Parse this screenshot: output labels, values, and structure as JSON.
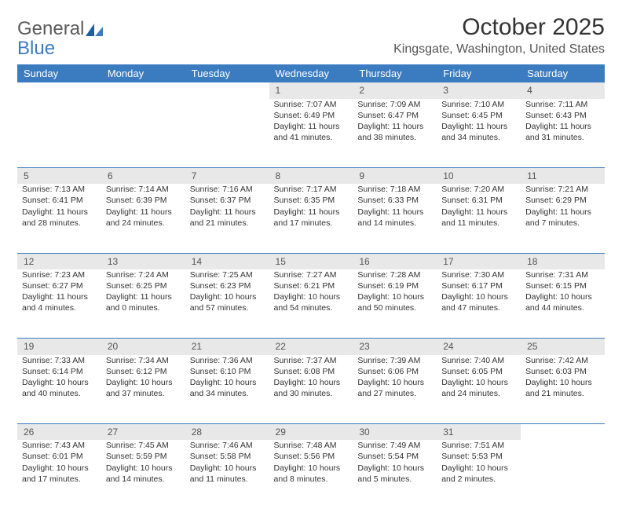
{
  "logo": {
    "line1": "General",
    "line2": "Blue"
  },
  "title": "October 2025",
  "location": "Kingsgate, Washington, United States",
  "colors": {
    "header_bg": "#3b7bbf",
    "header_text": "#ffffff",
    "daynum_bg": "#e8e8e8",
    "border": "#3b7bbf",
    "text": "#333333",
    "logo_gray": "#5a5a5a",
    "logo_blue": "#3b7bbf"
  },
  "fonts": {
    "title_pt": 30,
    "location_pt": 16,
    "weekday_pt": 13,
    "daynum_pt": 12,
    "cell_pt": 10.5
  },
  "weekdays": [
    "Sunday",
    "Monday",
    "Tuesday",
    "Wednesday",
    "Thursday",
    "Friday",
    "Saturday"
  ],
  "weeks": [
    [
      null,
      null,
      null,
      {
        "n": "1",
        "sr": "Sunrise: 7:07 AM",
        "ss": "Sunset: 6:49 PM",
        "d1": "Daylight: 11 hours",
        "d2": "and 41 minutes."
      },
      {
        "n": "2",
        "sr": "Sunrise: 7:09 AM",
        "ss": "Sunset: 6:47 PM",
        "d1": "Daylight: 11 hours",
        "d2": "and 38 minutes."
      },
      {
        "n": "3",
        "sr": "Sunrise: 7:10 AM",
        "ss": "Sunset: 6:45 PM",
        "d1": "Daylight: 11 hours",
        "d2": "and 34 minutes."
      },
      {
        "n": "4",
        "sr": "Sunrise: 7:11 AM",
        "ss": "Sunset: 6:43 PM",
        "d1": "Daylight: 11 hours",
        "d2": "and 31 minutes."
      }
    ],
    [
      {
        "n": "5",
        "sr": "Sunrise: 7:13 AM",
        "ss": "Sunset: 6:41 PM",
        "d1": "Daylight: 11 hours",
        "d2": "and 28 minutes."
      },
      {
        "n": "6",
        "sr": "Sunrise: 7:14 AM",
        "ss": "Sunset: 6:39 PM",
        "d1": "Daylight: 11 hours",
        "d2": "and 24 minutes."
      },
      {
        "n": "7",
        "sr": "Sunrise: 7:16 AM",
        "ss": "Sunset: 6:37 PM",
        "d1": "Daylight: 11 hours",
        "d2": "and 21 minutes."
      },
      {
        "n": "8",
        "sr": "Sunrise: 7:17 AM",
        "ss": "Sunset: 6:35 PM",
        "d1": "Daylight: 11 hours",
        "d2": "and 17 minutes."
      },
      {
        "n": "9",
        "sr": "Sunrise: 7:18 AM",
        "ss": "Sunset: 6:33 PM",
        "d1": "Daylight: 11 hours",
        "d2": "and 14 minutes."
      },
      {
        "n": "10",
        "sr": "Sunrise: 7:20 AM",
        "ss": "Sunset: 6:31 PM",
        "d1": "Daylight: 11 hours",
        "d2": "and 11 minutes."
      },
      {
        "n": "11",
        "sr": "Sunrise: 7:21 AM",
        "ss": "Sunset: 6:29 PM",
        "d1": "Daylight: 11 hours",
        "d2": "and 7 minutes."
      }
    ],
    [
      {
        "n": "12",
        "sr": "Sunrise: 7:23 AM",
        "ss": "Sunset: 6:27 PM",
        "d1": "Daylight: 11 hours",
        "d2": "and 4 minutes."
      },
      {
        "n": "13",
        "sr": "Sunrise: 7:24 AM",
        "ss": "Sunset: 6:25 PM",
        "d1": "Daylight: 11 hours",
        "d2": "and 0 minutes."
      },
      {
        "n": "14",
        "sr": "Sunrise: 7:25 AM",
        "ss": "Sunset: 6:23 PM",
        "d1": "Daylight: 10 hours",
        "d2": "and 57 minutes."
      },
      {
        "n": "15",
        "sr": "Sunrise: 7:27 AM",
        "ss": "Sunset: 6:21 PM",
        "d1": "Daylight: 10 hours",
        "d2": "and 54 minutes."
      },
      {
        "n": "16",
        "sr": "Sunrise: 7:28 AM",
        "ss": "Sunset: 6:19 PM",
        "d1": "Daylight: 10 hours",
        "d2": "and 50 minutes."
      },
      {
        "n": "17",
        "sr": "Sunrise: 7:30 AM",
        "ss": "Sunset: 6:17 PM",
        "d1": "Daylight: 10 hours",
        "d2": "and 47 minutes."
      },
      {
        "n": "18",
        "sr": "Sunrise: 7:31 AM",
        "ss": "Sunset: 6:15 PM",
        "d1": "Daylight: 10 hours",
        "d2": "and 44 minutes."
      }
    ],
    [
      {
        "n": "19",
        "sr": "Sunrise: 7:33 AM",
        "ss": "Sunset: 6:14 PM",
        "d1": "Daylight: 10 hours",
        "d2": "and 40 minutes."
      },
      {
        "n": "20",
        "sr": "Sunrise: 7:34 AM",
        "ss": "Sunset: 6:12 PM",
        "d1": "Daylight: 10 hours",
        "d2": "and 37 minutes."
      },
      {
        "n": "21",
        "sr": "Sunrise: 7:36 AM",
        "ss": "Sunset: 6:10 PM",
        "d1": "Daylight: 10 hours",
        "d2": "and 34 minutes."
      },
      {
        "n": "22",
        "sr": "Sunrise: 7:37 AM",
        "ss": "Sunset: 6:08 PM",
        "d1": "Daylight: 10 hours",
        "d2": "and 30 minutes."
      },
      {
        "n": "23",
        "sr": "Sunrise: 7:39 AM",
        "ss": "Sunset: 6:06 PM",
        "d1": "Daylight: 10 hours",
        "d2": "and 27 minutes."
      },
      {
        "n": "24",
        "sr": "Sunrise: 7:40 AM",
        "ss": "Sunset: 6:05 PM",
        "d1": "Daylight: 10 hours",
        "d2": "and 24 minutes."
      },
      {
        "n": "25",
        "sr": "Sunrise: 7:42 AM",
        "ss": "Sunset: 6:03 PM",
        "d1": "Daylight: 10 hours",
        "d2": "and 21 minutes."
      }
    ],
    [
      {
        "n": "26",
        "sr": "Sunrise: 7:43 AM",
        "ss": "Sunset: 6:01 PM",
        "d1": "Daylight: 10 hours",
        "d2": "and 17 minutes."
      },
      {
        "n": "27",
        "sr": "Sunrise: 7:45 AM",
        "ss": "Sunset: 5:59 PM",
        "d1": "Daylight: 10 hours",
        "d2": "and 14 minutes."
      },
      {
        "n": "28",
        "sr": "Sunrise: 7:46 AM",
        "ss": "Sunset: 5:58 PM",
        "d1": "Daylight: 10 hours",
        "d2": "and 11 minutes."
      },
      {
        "n": "29",
        "sr": "Sunrise: 7:48 AM",
        "ss": "Sunset: 5:56 PM",
        "d1": "Daylight: 10 hours",
        "d2": "and 8 minutes."
      },
      {
        "n": "30",
        "sr": "Sunrise: 7:49 AM",
        "ss": "Sunset: 5:54 PM",
        "d1": "Daylight: 10 hours",
        "d2": "and 5 minutes."
      },
      {
        "n": "31",
        "sr": "Sunrise: 7:51 AM",
        "ss": "Sunset: 5:53 PM",
        "d1": "Daylight: 10 hours",
        "d2": "and 2 minutes."
      },
      null
    ]
  ]
}
